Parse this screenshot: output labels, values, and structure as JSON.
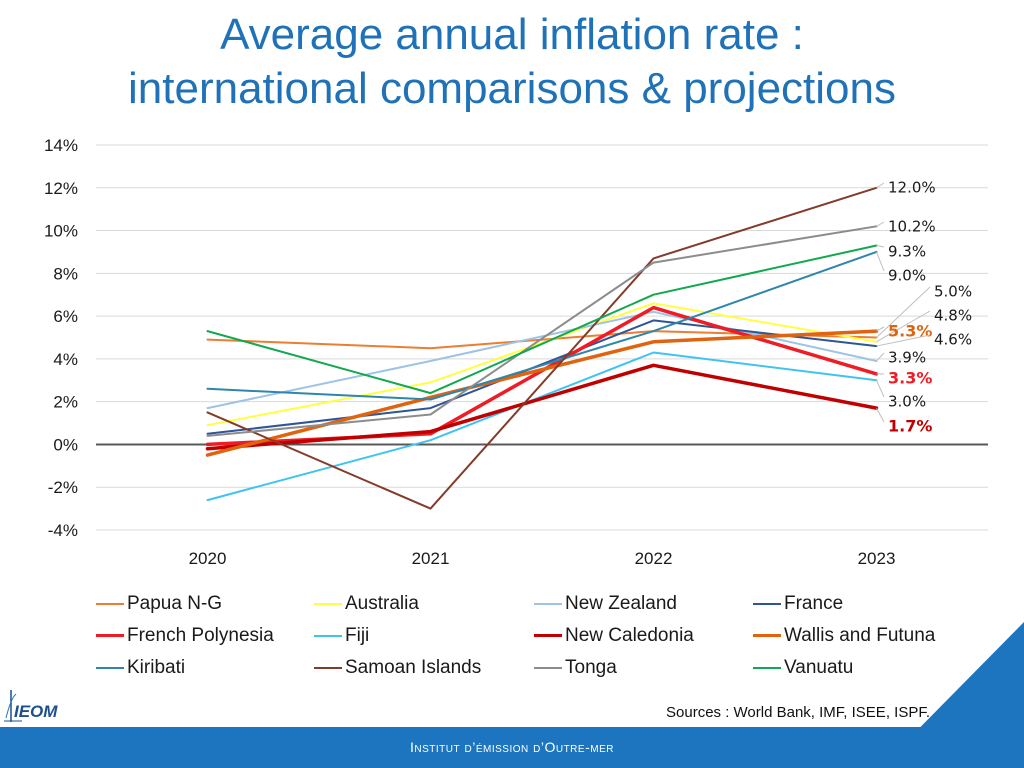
{
  "title_line1": "Average annual inflation rate :",
  "title_line2": "international comparisons & projections",
  "sources": "Sources : World Bank, IMF, ISEE, ISPF.",
  "footer": "Institut d’émission d’Outre-mer",
  "logo_text": "IEOM",
  "colors": {
    "title": "#1f72b8",
    "footer": "#1d75bf",
    "zero_line": "#595959",
    "grid": "#d9d9d9"
  },
  "chart_data": {
    "type": "line",
    "title": "Average annual inflation rate : international comparisons & projections",
    "categories": [
      "2020",
      "2021",
      "2022",
      "2023"
    ],
    "ylim": [
      -4,
      14
    ],
    "yticks": [
      -4,
      -2,
      0,
      2,
      4,
      6,
      8,
      10,
      12,
      14
    ],
    "ytick_labels": [
      "-4%",
      "-2%",
      "0%",
      "2%",
      "4%",
      "6%",
      "8%",
      "10%",
      "12%",
      "14%"
    ],
    "grid": true,
    "legend_position": "bottom",
    "series": [
      {
        "name": "Papua N-G",
        "color": "#ed7d31",
        "width": 2,
        "values": [
          4.9,
          4.5,
          5.3,
          5.0
        ]
      },
      {
        "name": "Australia",
        "color": "#ffff40",
        "width": 2,
        "values": [
          0.9,
          2.9,
          6.6,
          4.8
        ]
      },
      {
        "name": "New Zealand",
        "color": "#9dc3e6",
        "width": 2,
        "values": [
          1.7,
          3.9,
          6.2,
          3.9
        ]
      },
      {
        "name": "France",
        "color": "#2f5597",
        "width": 2,
        "values": [
          0.5,
          1.7,
          5.8,
          4.6
        ]
      },
      {
        "name": "French Polynesia",
        "color": "#ee1c25",
        "width": 3.5,
        "values": [
          0.0,
          0.5,
          6.4,
          3.3
        ]
      },
      {
        "name": "Fiji",
        "color": "#3fc4f0",
        "width": 2,
        "values": [
          -2.6,
          0.2,
          4.3,
          3.0
        ]
      },
      {
        "name": "New Caledonia",
        "color": "#c00000",
        "width": 3.5,
        "values": [
          -0.2,
          0.6,
          3.7,
          1.7
        ]
      },
      {
        "name": "Wallis and Futuna",
        "color": "#e0640f",
        "width": 3.5,
        "values": [
          -0.5,
          2.2,
          4.8,
          5.3
        ]
      },
      {
        "name": "Kiribati",
        "color": "#2e86ab",
        "width": 2,
        "values": [
          2.6,
          2.1,
          5.3,
          9.0
        ]
      },
      {
        "name": "Samoan Islands",
        "color": "#843c2a",
        "width": 2,
        "values": [
          1.5,
          -3.0,
          8.7,
          12.0
        ]
      },
      {
        "name": "Tonga",
        "color": "#8c8c8c",
        "width": 2,
        "values": [
          0.4,
          1.4,
          8.5,
          10.2
        ]
      },
      {
        "name": "Vanuatu",
        "color": "#12a84f",
        "width": 2,
        "values": [
          5.3,
          2.4,
          7.0,
          9.3
        ]
      }
    ],
    "end_labels": [
      {
        "text": "12.0%",
        "series": "Samoan Islands",
        "color": "#1a1a1a",
        "bold": false
      },
      {
        "text": "10.2%",
        "series": "Tonga",
        "color": "#1a1a1a",
        "bold": false
      },
      {
        "text": "9.3%",
        "series": "Vanuatu",
        "color": "#1a1a1a",
        "bold": false
      },
      {
        "text": "9.0%",
        "series": "Kiribati",
        "color": "#1a1a1a",
        "bold": false
      },
      {
        "text": "5.0%",
        "series": "Papua N-G",
        "color": "#1a1a1a",
        "bold": false
      },
      {
        "text": "4.8%",
        "series": "Australia",
        "color": "#1a1a1a",
        "bold": false
      },
      {
        "text": "5.3%",
        "series": "Wallis and Futuna",
        "color": "#e0640f",
        "bold": true
      },
      {
        "text": "4.6%",
        "series": "France",
        "color": "#1a1a1a",
        "bold": false
      },
      {
        "text": "3.9%",
        "series": "New Zealand",
        "color": "#1a1a1a",
        "bold": false
      },
      {
        "text": "3.3%",
        "series": "French Polynesia",
        "color": "#ee1c25",
        "bold": true
      },
      {
        "text": "3.0%",
        "series": "Fiji",
        "color": "#1a1a1a",
        "bold": false
      },
      {
        "text": "1.7%",
        "series": "New Caledonia",
        "color": "#c00000",
        "bold": true
      }
    ]
  }
}
